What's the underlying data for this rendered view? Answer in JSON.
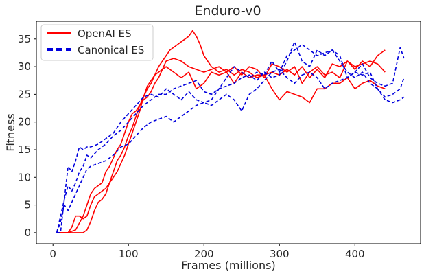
{
  "chart_data": {
    "type": "line",
    "title": "Enduro-v0",
    "xlabel": "Frames (millions)",
    "ylabel": "Fitness",
    "xlim": [
      -22,
      487
    ],
    "ylim": [
      -2,
      38.2
    ],
    "xticks": [
      0,
      100,
      200,
      300,
      400
    ],
    "yticks": [
      0,
      5,
      10,
      15,
      20,
      25,
      30,
      35
    ],
    "grid": false,
    "legend": {
      "placement": "top-left",
      "entries": [
        {
          "label": "OpenAI ES",
          "color": "#ff0000",
          "style": "solid"
        },
        {
          "label": "Canonical ES",
          "color": "#0000dd",
          "style": "dashed"
        }
      ]
    },
    "series": [
      {
        "group": "OpenAI ES",
        "color": "#ff0000",
        "style": "solid",
        "x": [
          5,
          20,
          30,
          40,
          45,
          50,
          55,
          60,
          65,
          70,
          75,
          80,
          85,
          90,
          95,
          100,
          105,
          110,
          115,
          120,
          125,
          130,
          135,
          140,
          145,
          150,
          155,
          160,
          165,
          170,
          175,
          180,
          185,
          190,
          195,
          200,
          205,
          210,
          220,
          230,
          240,
          250,
          260,
          270,
          280,
          290,
          300,
          310,
          320,
          330,
          340,
          350,
          360,
          370,
          380,
          390,
          400,
          410,
          420,
          430,
          440
        ],
        "y": [
          0,
          0,
          0.5,
          3,
          5,
          7,
          8,
          8.5,
          9,
          11,
          12,
          13.5,
          15,
          16,
          18,
          20,
          21.5,
          22,
          23,
          24.5,
          26,
          27,
          28.5,
          30,
          31,
          32,
          33,
          33.5,
          34,
          34.5,
          35,
          35.5,
          36.5,
          35.5,
          34,
          32,
          31,
          30,
          29,
          29.5,
          28.5,
          29.5,
          29,
          28,
          28.5,
          29,
          28.5,
          29.5,
          28.5,
          30,
          28,
          29.5,
          28,
          30.5,
          30,
          31,
          29.5,
          31,
          30,
          32,
          33
        ]
      },
      {
        "group": "OpenAI ES",
        "color": "#ff0000",
        "style": "solid",
        "x": [
          5,
          20,
          30,
          40,
          45,
          50,
          55,
          60,
          65,
          70,
          75,
          80,
          85,
          90,
          95,
          100,
          105,
          110,
          115,
          120,
          125,
          130,
          135,
          140,
          145,
          150,
          160,
          170,
          180,
          190,
          200,
          210,
          220,
          230,
          240,
          250,
          260,
          270,
          280,
          290,
          300,
          310,
          320,
          330,
          340,
          350,
          360,
          370,
          380,
          390,
          400,
          410,
          420,
          430,
          440
        ],
        "y": [
          0,
          0,
          0,
          0,
          0.5,
          2,
          4,
          5.5,
          6,
          7,
          9,
          11,
          13,
          14,
          15.5,
          17.5,
          19,
          21,
          23,
          24,
          24.5,
          25.5,
          27,
          28,
          29.5,
          31,
          31.5,
          31,
          30,
          29.5,
          29,
          29.5,
          30,
          29,
          30,
          28.5,
          30,
          29.5,
          28,
          30.5,
          30,
          29,
          30,
          27,
          29,
          30,
          28.5,
          29,
          28,
          31,
          30,
          30.5,
          31,
          30.5,
          29
        ]
      },
      {
        "group": "OpenAI ES",
        "color": "#ff0000",
        "style": "solid",
        "x": [
          5,
          20,
          25,
          30,
          35,
          40,
          45,
          50,
          55,
          60,
          65,
          70,
          75,
          80,
          85,
          90,
          95,
          100,
          105,
          110,
          115,
          120,
          125,
          130,
          135,
          140,
          145,
          150,
          160,
          170,
          180,
          190,
          200,
          210,
          220,
          230,
          240,
          250,
          260,
          270,
          280,
          290,
          300,
          310,
          320,
          330,
          340,
          350,
          360,
          370,
          380,
          390,
          400,
          410,
          420,
          430,
          440
        ],
        "y": [
          0,
          0,
          1,
          3,
          3,
          2.5,
          3,
          5,
          6.5,
          7,
          7.5,
          8,
          9,
          10,
          11,
          12.5,
          14,
          16,
          18,
          20,
          22,
          24.5,
          26.5,
          27.5,
          28.5,
          29,
          29.5,
          30,
          29,
          28,
          29,
          26,
          27,
          29,
          28.5,
          29,
          27,
          29,
          28,
          28.5,
          28.5,
          26,
          24,
          25.5,
          25,
          24.5,
          23.5,
          26,
          26,
          27,
          27,
          28,
          26,
          27,
          27.5,
          26.5,
          26
        ]
      },
      {
        "group": "Canonical ES",
        "color": "#0000dd",
        "style": "dashed",
        "x": [
          5,
          10,
          15,
          20,
          25,
          30,
          35,
          40,
          45,
          50,
          60,
          70,
          80,
          90,
          100,
          110,
          120,
          130,
          140,
          150,
          160,
          170,
          180,
          190,
          200,
          210,
          220,
          230,
          240,
          250,
          260,
          270,
          280,
          290,
          300,
          310,
          320,
          330,
          340,
          350,
          360,
          370,
          380,
          390,
          400,
          410,
          420,
          430,
          440,
          450,
          460,
          465
        ],
        "y": [
          0,
          0,
          6,
          12,
          11,
          13,
          15.5,
          15,
          15.5,
          15.5,
          16,
          17,
          18,
          20,
          21.5,
          23,
          24.5,
          25,
          24.5,
          26,
          25,
          24,
          25.5,
          24,
          23.5,
          24,
          26,
          28,
          30,
          29,
          28,
          29,
          28.5,
          31,
          29,
          32,
          33,
          34,
          33,
          32,
          32.5,
          33,
          32,
          28,
          29,
          28.5,
          29,
          26,
          24,
          23.5,
          24,
          24.5
        ]
      },
      {
        "group": "Canonical ES",
        "color": "#0000dd",
        "style": "dashed",
        "x": [
          5,
          10,
          15,
          20,
          25,
          30,
          35,
          40,
          45,
          50,
          60,
          70,
          80,
          90,
          100,
          110,
          120,
          130,
          140,
          150,
          160,
          170,
          180,
          190,
          200,
          210,
          220,
          230,
          240,
          250,
          260,
          270,
          280,
          290,
          300,
          310,
          320,
          330,
          340,
          350,
          360,
          370,
          380,
          390,
          400,
          410,
          420,
          430,
          440,
          450,
          460,
          465
        ],
        "y": [
          0,
          3,
          6,
          8.5,
          7.5,
          9,
          11,
          12,
          14,
          13.5,
          15,
          16,
          17.5,
          18.5,
          20,
          21.5,
          23,
          24,
          25,
          25,
          26,
          26.5,
          27,
          27.5,
          25.5,
          25,
          26,
          26.5,
          27,
          28,
          28.5,
          27.5,
          29,
          28,
          28.5,
          31,
          34.5,
          31,
          30,
          33,
          32,
          33,
          31,
          29,
          28,
          29,
          27,
          26,
          24.5,
          25,
          26,
          28
        ]
      },
      {
        "group": "Canonical ES",
        "color": "#0000dd",
        "style": "dashed",
        "x": [
          5,
          10,
          15,
          20,
          25,
          30,
          35,
          40,
          45,
          50,
          60,
          70,
          80,
          90,
          100,
          110,
          120,
          130,
          140,
          150,
          160,
          170,
          180,
          190,
          200,
          210,
          220,
          230,
          240,
          250,
          260,
          270,
          280,
          290,
          300,
          310,
          320,
          330,
          340,
          350,
          360,
          370,
          380,
          390,
          400,
          410,
          420,
          430,
          440,
          450,
          460,
          465
        ],
        "y": [
          0,
          2,
          5,
          4,
          5.5,
          7,
          8.5,
          10,
          11.5,
          12,
          12.5,
          13,
          14,
          15.5,
          16,
          17.5,
          19,
          20,
          20.5,
          21,
          20,
          21,
          22,
          23,
          23.5,
          23,
          24,
          25,
          24,
          22,
          25,
          26,
          27.5,
          29,
          29.5,
          28,
          27,
          28.5,
          29,
          28,
          26,
          27,
          27.5,
          28,
          29,
          30.5,
          28,
          27,
          26.5,
          27,
          33.5,
          31.5
        ]
      }
    ]
  }
}
